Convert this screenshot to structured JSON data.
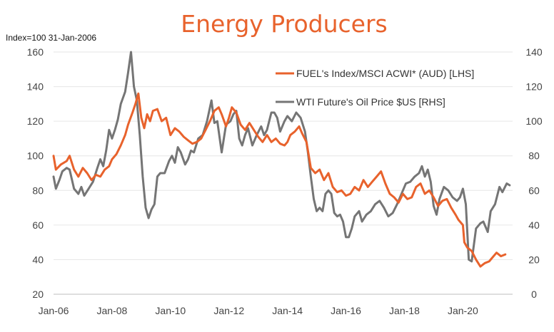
{
  "chart_data": {
    "type": "line",
    "title": "Energy Producers",
    "subtitle": "Index=100 31-Jan-2006",
    "x_tick_labels": [
      "Jan-06",
      "Jan-08",
      "Jan-10",
      "Jan-12",
      "Jan-14",
      "Jan-16",
      "Jan-18",
      "Jan-20"
    ],
    "x_tick_positions": [
      2006,
      2008,
      2010,
      2012,
      2014,
      2016,
      2018,
      2020
    ],
    "xlim": [
      2006,
      2021.7
    ],
    "left_axis": {
      "ylim": [
        20,
        160
      ],
      "ticks": [
        20,
        40,
        60,
        80,
        100,
        120,
        140,
        160
      ]
    },
    "right_axis": {
      "ylim": [
        0,
        140
      ],
      "ticks": [
        0,
        20,
        40,
        60,
        80,
        100,
        120,
        140
      ]
    },
    "legend_position": "top-right",
    "series": [
      {
        "name": "FUEL's Index/MSCI ACWI* (AUD) [LHS]",
        "axis": "left",
        "color": "#e8622c",
        "points": [
          [
            2006.0,
            100
          ],
          [
            2006.08,
            92
          ],
          [
            2006.25,
            95
          ],
          [
            2006.45,
            97
          ],
          [
            2006.55,
            100
          ],
          [
            2006.7,
            92
          ],
          [
            2006.85,
            88
          ],
          [
            2007.0,
            93
          ],
          [
            2007.15,
            90
          ],
          [
            2007.3,
            86
          ],
          [
            2007.45,
            89
          ],
          [
            2007.6,
            88
          ],
          [
            2007.75,
            92
          ],
          [
            2007.9,
            94
          ],
          [
            2008.0,
            98
          ],
          [
            2008.15,
            101
          ],
          [
            2008.3,
            106
          ],
          [
            2008.45,
            112
          ],
          [
            2008.55,
            118
          ],
          [
            2008.7,
            125
          ],
          [
            2008.8,
            130
          ],
          [
            2008.9,
            136
          ],
          [
            2009.0,
            122
          ],
          [
            2009.1,
            116
          ],
          [
            2009.2,
            124
          ],
          [
            2009.3,
            120
          ],
          [
            2009.4,
            126
          ],
          [
            2009.55,
            127
          ],
          [
            2009.7,
            120
          ],
          [
            2009.85,
            122
          ],
          [
            2010.0,
            112
          ],
          [
            2010.15,
            116
          ],
          [
            2010.3,
            114
          ],
          [
            2010.45,
            111
          ],
          [
            2010.6,
            109
          ],
          [
            2010.75,
            107
          ],
          [
            2010.9,
            108
          ],
          [
            2011.05,
            110
          ],
          [
            2011.2,
            115
          ],
          [
            2011.35,
            120
          ],
          [
            2011.5,
            126
          ],
          [
            2011.65,
            128
          ],
          [
            2011.75,
            124
          ],
          [
            2011.9,
            117
          ],
          [
            2012.0,
            122
          ],
          [
            2012.1,
            128
          ],
          [
            2012.25,
            125
          ],
          [
            2012.4,
            118
          ],
          [
            2012.55,
            115
          ],
          [
            2012.7,
            119
          ],
          [
            2012.85,
            115
          ],
          [
            2013.0,
            111
          ],
          [
            2013.15,
            108
          ],
          [
            2013.3,
            112
          ],
          [
            2013.45,
            108
          ],
          [
            2013.6,
            110
          ],
          [
            2013.75,
            107
          ],
          [
            2013.9,
            106
          ],
          [
            2014.0,
            108
          ],
          [
            2014.1,
            112
          ],
          [
            2014.25,
            114
          ],
          [
            2014.4,
            117
          ],
          [
            2014.5,
            113
          ],
          [
            2014.65,
            108
          ],
          [
            2014.8,
            93
          ],
          [
            2014.95,
            90
          ],
          [
            2015.1,
            92
          ],
          [
            2015.25,
            86
          ],
          [
            2015.4,
            90
          ],
          [
            2015.55,
            82
          ],
          [
            2015.7,
            79
          ],
          [
            2015.85,
            80
          ],
          [
            2016.0,
            77
          ],
          [
            2016.15,
            78
          ],
          [
            2016.3,
            82
          ],
          [
            2016.45,
            80
          ],
          [
            2016.6,
            86
          ],
          [
            2016.75,
            82
          ],
          [
            2016.9,
            85
          ],
          [
            2017.05,
            88
          ],
          [
            2017.2,
            91
          ],
          [
            2017.35,
            84
          ],
          [
            2017.5,
            78
          ],
          [
            2017.65,
            76
          ],
          [
            2017.8,
            73
          ],
          [
            2017.95,
            78
          ],
          [
            2018.1,
            75
          ],
          [
            2018.25,
            76
          ],
          [
            2018.4,
            82
          ],
          [
            2018.55,
            84
          ],
          [
            2018.7,
            78
          ],
          [
            2018.85,
            80
          ],
          [
            2019.0,
            76
          ],
          [
            2019.15,
            71
          ],
          [
            2019.3,
            74
          ],
          [
            2019.45,
            75
          ],
          [
            2019.6,
            70
          ],
          [
            2019.75,
            66
          ],
          [
            2019.85,
            63
          ],
          [
            2020.0,
            60
          ],
          [
            2020.05,
            50
          ],
          [
            2020.15,
            47
          ],
          [
            2020.3,
            45
          ],
          [
            2020.45,
            40
          ],
          [
            2020.6,
            36
          ],
          [
            2020.75,
            38
          ],
          [
            2020.9,
            39
          ],
          [
            2021.0,
            41
          ],
          [
            2021.15,
            44
          ],
          [
            2021.3,
            42
          ],
          [
            2021.45,
            43
          ]
        ]
      },
      {
        "name": "WTI Future's Oil Price $US [RHS]",
        "axis": "right",
        "color": "#757575",
        "points": [
          [
            2006.0,
            68
          ],
          [
            2006.08,
            61
          ],
          [
            2006.2,
            66
          ],
          [
            2006.3,
            71
          ],
          [
            2006.45,
            73
          ],
          [
            2006.55,
            72
          ],
          [
            2006.7,
            61
          ],
          [
            2006.85,
            58
          ],
          [
            2006.95,
            62
          ],
          [
            2007.05,
            57
          ],
          [
            2007.2,
            61
          ],
          [
            2007.35,
            65
          ],
          [
            2007.5,
            73
          ],
          [
            2007.6,
            78
          ],
          [
            2007.7,
            74
          ],
          [
            2007.8,
            83
          ],
          [
            2007.9,
            95
          ],
          [
            2008.0,
            90
          ],
          [
            2008.1,
            95
          ],
          [
            2008.2,
            101
          ],
          [
            2008.3,
            110
          ],
          [
            2008.45,
            117
          ],
          [
            2008.55,
            128
          ],
          [
            2008.65,
            140
          ],
          [
            2008.75,
            120
          ],
          [
            2008.85,
            112
          ],
          [
            2008.95,
            92
          ],
          [
            2009.05,
            68
          ],
          [
            2009.15,
            50
          ],
          [
            2009.25,
            44
          ],
          [
            2009.35,
            49
          ],
          [
            2009.45,
            52
          ],
          [
            2009.55,
            68
          ],
          [
            2009.65,
            70
          ],
          [
            2009.8,
            70
          ],
          [
            2009.95,
            77
          ],
          [
            2010.05,
            80
          ],
          [
            2010.15,
            76
          ],
          [
            2010.25,
            85
          ],
          [
            2010.35,
            82
          ],
          [
            2010.5,
            75
          ],
          [
            2010.6,
            78
          ],
          [
            2010.7,
            83
          ],
          [
            2010.8,
            82
          ],
          [
            2010.95,
            90
          ],
          [
            2011.1,
            92
          ],
          [
            2011.25,
            100
          ],
          [
            2011.4,
            112
          ],
          [
            2011.5,
            99
          ],
          [
            2011.6,
            100
          ],
          [
            2011.75,
            82
          ],
          [
            2011.9,
            98
          ],
          [
            2012.05,
            100
          ],
          [
            2012.15,
            104
          ],
          [
            2012.25,
            106
          ],
          [
            2012.35,
            90
          ],
          [
            2012.45,
            86
          ],
          [
            2012.55,
            92
          ],
          [
            2012.65,
            96
          ],
          [
            2012.8,
            86
          ],
          [
            2012.95,
            92
          ],
          [
            2013.1,
            97
          ],
          [
            2013.2,
            92
          ],
          [
            2013.3,
            95
          ],
          [
            2013.45,
            105
          ],
          [
            2013.55,
            105
          ],
          [
            2013.65,
            102
          ],
          [
            2013.75,
            94
          ],
          [
            2013.9,
            100
          ],
          [
            2014.0,
            103
          ],
          [
            2014.15,
            100
          ],
          [
            2014.3,
            105
          ],
          [
            2014.45,
            102
          ],
          [
            2014.6,
            94
          ],
          [
            2014.7,
            82
          ],
          [
            2014.8,
            68
          ],
          [
            2014.9,
            55
          ],
          [
            2015.0,
            48
          ],
          [
            2015.1,
            50
          ],
          [
            2015.2,
            48
          ],
          [
            2015.3,
            58
          ],
          [
            2015.4,
            60
          ],
          [
            2015.5,
            58
          ],
          [
            2015.6,
            47
          ],
          [
            2015.7,
            45
          ],
          [
            2015.8,
            46
          ],
          [
            2015.9,
            42
          ],
          [
            2016.0,
            33
          ],
          [
            2016.1,
            33
          ],
          [
            2016.2,
            38
          ],
          [
            2016.3,
            45
          ],
          [
            2016.45,
            48
          ],
          [
            2016.55,
            42
          ],
          [
            2016.7,
            46
          ],
          [
            2016.85,
            48
          ],
          [
            2017.0,
            52
          ],
          [
            2017.15,
            54
          ],
          [
            2017.3,
            50
          ],
          [
            2017.45,
            45
          ],
          [
            2017.6,
            47
          ],
          [
            2017.75,
            52
          ],
          [
            2017.9,
            58
          ],
          [
            2018.05,
            64
          ],
          [
            2018.2,
            65
          ],
          [
            2018.35,
            68
          ],
          [
            2018.5,
            70
          ],
          [
            2018.6,
            74
          ],
          [
            2018.7,
            68
          ],
          [
            2018.8,
            72
          ],
          [
            2018.9,
            65
          ],
          [
            2019.0,
            51
          ],
          [
            2019.1,
            46
          ],
          [
            2019.2,
            55
          ],
          [
            2019.35,
            62
          ],
          [
            2019.5,
            60
          ],
          [
            2019.65,
            56
          ],
          [
            2019.8,
            54
          ],
          [
            2019.9,
            56
          ],
          [
            2020.0,
            61
          ],
          [
            2020.1,
            52
          ],
          [
            2020.2,
            20
          ],
          [
            2020.3,
            19
          ],
          [
            2020.45,
            38
          ],
          [
            2020.6,
            41
          ],
          [
            2020.7,
            42
          ],
          [
            2020.85,
            36
          ],
          [
            2020.95,
            48
          ],
          [
            2021.1,
            52
          ],
          [
            2021.25,
            62
          ],
          [
            2021.35,
            59
          ],
          [
            2021.5,
            64
          ],
          [
            2021.6,
            63
          ]
        ]
      }
    ]
  }
}
